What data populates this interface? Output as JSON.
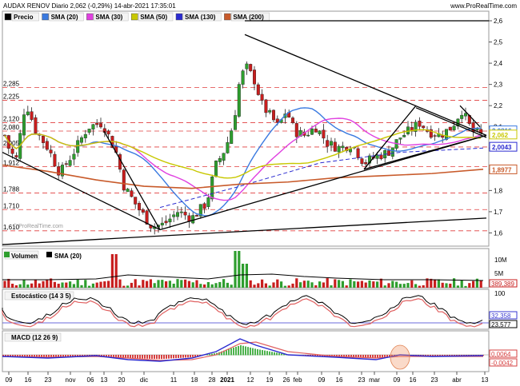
{
  "header": {
    "title": "AUDAX RENOV Diario 2,062 (-0,29%) 14-abr-2021 17:35:01",
    "brand": "www.ProRealTime.com",
    "watermark": "© ProRealTime.com"
  },
  "colors": {
    "price_up": "#2e9e2e",
    "price_down": "#c81e1e",
    "sma20": "#3a7ae0",
    "sma30": "#e040e0",
    "sma50": "#c8c800",
    "sma130": "#2a2ad0",
    "sma200": "#c85a2a",
    "ref_lines": "#e03c3c",
    "trend": "#000000"
  },
  "legend": [
    {
      "label": "Precio",
      "color": "#000000",
      "icon": "price-swatch"
    },
    {
      "label": "SMA (20)",
      "color": "#3a7ae0",
      "icon": "line-swatch"
    },
    {
      "label": "SMA (30)",
      "color": "#e040e0",
      "icon": "line-swatch"
    },
    {
      "label": "SMA (50)",
      "color": "#c8c800",
      "icon": "line-swatch"
    },
    {
      "label": "SMA (130)",
      "color": "#2a2ad0",
      "icon": "line-swatch"
    },
    {
      "label": "SMA (200)",
      "color": "#c85a2a",
      "icon": "line-swatch"
    }
  ],
  "volume_panel": {
    "labels": [
      "Volumen",
      "SMA (20)"
    ],
    "axis": [
      "10M",
      "5M"
    ],
    "badge": "389,389"
  },
  "stoch_panel": {
    "label": "Estocástico (14 3 5)",
    "axis": [
      "100"
    ],
    "badges": [
      "32,358",
      "23,577"
    ]
  },
  "macd_panel": {
    "label": "MACD (12 26 9)",
    "badges": [
      "0,0064",
      "-0,0042"
    ]
  },
  "chart_data": {
    "type": "candlestick",
    "title": "AUDAX RENOV Diario 2,062 (-0,29%) 14-abr-2021 17:35:01",
    "y_axis_ticks": [
      "2,6",
      "2,5",
      "2,4",
      "2,3",
      "2,2",
      "2,1",
      "2",
      "1,9",
      "1,8",
      "1,7",
      "1,6"
    ],
    "ylim": [
      1.55,
      2.63
    ],
    "x_tick_labels": [
      "09",
      "16",
      "23",
      "nov",
      "06",
      "13",
      "20",
      "dic",
      "11",
      "18",
      "28",
      "2021",
      "12",
      "19",
      "26",
      "feb",
      "09",
      "16",
      "23",
      "mar",
      "09",
      "16",
      "23",
      "abr",
      "13"
    ],
    "reference_levels_left": [
      "2,285",
      "2,225",
      "2,120",
      "2,080",
      "2,005",
      "1,912",
      "1,788",
      "1,710",
      "1,610"
    ],
    "right_badges": [
      {
        "label": "2,0816",
        "value": 2.0816,
        "color": "#3a7ae0"
      },
      {
        "label": "2,062",
        "value": 2.062,
        "color": "#c8c800"
      },
      {
        "label": "2,0043",
        "value": 2.0043,
        "color": "#2a2ad0"
      },
      {
        "label": "1,8977",
        "value": 1.8977,
        "color": "#c85a2a"
      }
    ],
    "last_price": 2.062
  }
}
